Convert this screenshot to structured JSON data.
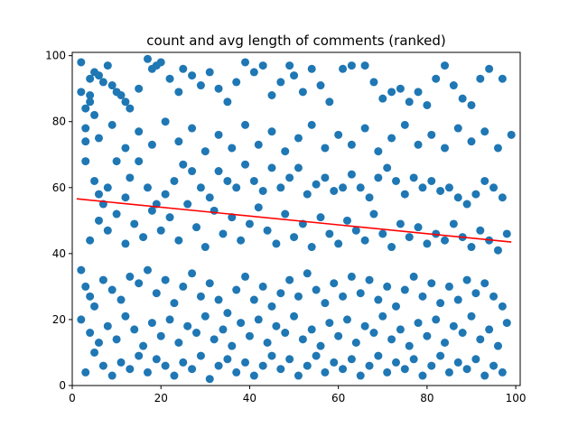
{
  "chart_data": {
    "type": "scatter",
    "title": "count and avg length of comments (ranked)",
    "xlabel": "",
    "ylabel": "",
    "xlim": [
      0,
      101
    ],
    "ylim": [
      0,
      101
    ],
    "xticks": [
      0,
      20,
      40,
      60,
      80,
      100
    ],
    "yticks": [
      0,
      20,
      40,
      60,
      80,
      100
    ],
    "grid": false,
    "legend": "none",
    "series": [
      {
        "kind": "points",
        "color": "#1f77b4",
        "points": [
          [
            2,
            98
          ],
          [
            2,
            89
          ],
          [
            3,
            84
          ],
          [
            3,
            74
          ],
          [
            4,
            93
          ],
          [
            4,
            88
          ],
          [
            4,
            86
          ],
          [
            5,
            95
          ],
          [
            5,
            82
          ],
          [
            6,
            94
          ],
          [
            7,
            92
          ],
          [
            8,
            97
          ],
          [
            9,
            91
          ],
          [
            10,
            89
          ],
          [
            11,
            88
          ],
          [
            12,
            86
          ],
          [
            13,
            84
          ],
          [
            15,
            90
          ],
          [
            17,
            99
          ],
          [
            18,
            96
          ],
          [
            19,
            97
          ],
          [
            20,
            98
          ],
          [
            22,
            93
          ],
          [
            24,
            89
          ],
          [
            25,
            96
          ],
          [
            27,
            94
          ],
          [
            29,
            91
          ],
          [
            31,
            95
          ],
          [
            33,
            90
          ],
          [
            35,
            86
          ],
          [
            37,
            92
          ],
          [
            39,
            98
          ],
          [
            41,
            95
          ],
          [
            43,
            97
          ],
          [
            45,
            88
          ],
          [
            47,
            92
          ],
          [
            49,
            97
          ],
          [
            50,
            94
          ],
          [
            52,
            89
          ],
          [
            54,
            96
          ],
          [
            56,
            91
          ],
          [
            58,
            86
          ],
          [
            61,
            96
          ],
          [
            63,
            97
          ],
          [
            66,
            97
          ],
          [
            68,
            92
          ],
          [
            70,
            87
          ],
          [
            72,
            89
          ],
          [
            74,
            90
          ],
          [
            76,
            86
          ],
          [
            78,
            89
          ],
          [
            80,
            85
          ],
          [
            82,
            93
          ],
          [
            84,
            97
          ],
          [
            86,
            91
          ],
          [
            88,
            87
          ],
          [
            90,
            85
          ],
          [
            92,
            93
          ],
          [
            94,
            96
          ],
          [
            97,
            93
          ],
          [
            3,
            68
          ],
          [
            5,
            62
          ],
          [
            6,
            58
          ],
          [
            7,
            55
          ],
          [
            8,
            60
          ],
          [
            10,
            68
          ],
          [
            12,
            57
          ],
          [
            13,
            63
          ],
          [
            15,
            68
          ],
          [
            17,
            60
          ],
          [
            19,
            55
          ],
          [
            21,
            58
          ],
          [
            23,
            62
          ],
          [
            25,
            67
          ],
          [
            27,
            65
          ],
          [
            29,
            60
          ],
          [
            31,
            57
          ],
          [
            33,
            65
          ],
          [
            35,
            62
          ],
          [
            37,
            60
          ],
          [
            39,
            67
          ],
          [
            41,
            62
          ],
          [
            43,
            59
          ],
          [
            45,
            66
          ],
          [
            47,
            60
          ],
          [
            49,
            63
          ],
          [
            51,
            66
          ],
          [
            53,
            58
          ],
          [
            55,
            61
          ],
          [
            57,
            63
          ],
          [
            59,
            59
          ],
          [
            61,
            60
          ],
          [
            63,
            64
          ],
          [
            65,
            60
          ],
          [
            67,
            57
          ],
          [
            69,
            63
          ],
          [
            71,
            66
          ],
          [
            73,
            62
          ],
          [
            75,
            58
          ],
          [
            77,
            63
          ],
          [
            79,
            60
          ],
          [
            81,
            62
          ],
          [
            83,
            59
          ],
          [
            85,
            60
          ],
          [
            87,
            57
          ],
          [
            89,
            55
          ],
          [
            91,
            58
          ],
          [
            93,
            62
          ],
          [
            95,
            60
          ],
          [
            97,
            57
          ],
          [
            2,
            35
          ],
          [
            3,
            30
          ],
          [
            4,
            27
          ],
          [
            5,
            24
          ],
          [
            7,
            32
          ],
          [
            9,
            29
          ],
          [
            11,
            26
          ],
          [
            13,
            33
          ],
          [
            15,
            31
          ],
          [
            17,
            35
          ],
          [
            19,
            28
          ],
          [
            21,
            32
          ],
          [
            23,
            25
          ],
          [
            25,
            30
          ],
          [
            27,
            34
          ],
          [
            29,
            27
          ],
          [
            31,
            31
          ],
          [
            33,
            26
          ],
          [
            35,
            22
          ],
          [
            37,
            29
          ],
          [
            39,
            33
          ],
          [
            41,
            26
          ],
          [
            43,
            30
          ],
          [
            45,
            24
          ],
          [
            47,
            28
          ],
          [
            49,
            32
          ],
          [
            51,
            27
          ],
          [
            53,
            34
          ],
          [
            55,
            29
          ],
          [
            57,
            25
          ],
          [
            59,
            31
          ],
          [
            61,
            27
          ],
          [
            63,
            33
          ],
          [
            65,
            28
          ],
          [
            67,
            32
          ],
          [
            69,
            26
          ],
          [
            71,
            30
          ],
          [
            73,
            24
          ],
          [
            75,
            29
          ],
          [
            77,
            33
          ],
          [
            79,
            27
          ],
          [
            81,
            31
          ],
          [
            83,
            25
          ],
          [
            85,
            30
          ],
          [
            87,
            26
          ],
          [
            89,
            32
          ],
          [
            91,
            28
          ],
          [
            93,
            31
          ],
          [
            95,
            27
          ],
          [
            97,
            24
          ],
          [
            3,
            4
          ],
          [
            5,
            10
          ],
          [
            7,
            6
          ],
          [
            9,
            3
          ],
          [
            11,
            7
          ],
          [
            13,
            5
          ],
          [
            15,
            9
          ],
          [
            17,
            4
          ],
          [
            19,
            8
          ],
          [
            21,
            6
          ],
          [
            23,
            3
          ],
          [
            25,
            7
          ],
          [
            27,
            5
          ],
          [
            29,
            9
          ],
          [
            31,
            2
          ],
          [
            33,
            6
          ],
          [
            35,
            8
          ],
          [
            37,
            4
          ],
          [
            39,
            7
          ],
          [
            41,
            3
          ],
          [
            43,
            6
          ],
          [
            45,
            9
          ],
          [
            47,
            5
          ],
          [
            49,
            8
          ],
          [
            51,
            3
          ],
          [
            53,
            6
          ],
          [
            55,
            9
          ],
          [
            57,
            4
          ],
          [
            59,
            7
          ],
          [
            61,
            5
          ],
          [
            63,
            8
          ],
          [
            65,
            3
          ],
          [
            67,
            6
          ],
          [
            69,
            9
          ],
          [
            71,
            4
          ],
          [
            73,
            7
          ],
          [
            75,
            5
          ],
          [
            77,
            8
          ],
          [
            79,
            3
          ],
          [
            81,
            6
          ],
          [
            83,
            9
          ],
          [
            85,
            4
          ],
          [
            87,
            7
          ],
          [
            89,
            5
          ],
          [
            91,
            8
          ],
          [
            93,
            3
          ],
          [
            95,
            6
          ],
          [
            97,
            4
          ],
          [
            4,
            44
          ],
          [
            6,
            50
          ],
          [
            8,
            47
          ],
          [
            10,
            52
          ],
          [
            12,
            43
          ],
          [
            14,
            49
          ],
          [
            16,
            45
          ],
          [
            18,
            53
          ],
          [
            20,
            47
          ],
          [
            22,
            51
          ],
          [
            24,
            44
          ],
          [
            26,
            55
          ],
          [
            28,
            48
          ],
          [
            30,
            42
          ],
          [
            32,
            53
          ],
          [
            34,
            46
          ],
          [
            36,
            51
          ],
          [
            38,
            44
          ],
          [
            40,
            49
          ],
          [
            42,
            54
          ],
          [
            44,
            47
          ],
          [
            46,
            43
          ],
          [
            48,
            52
          ],
          [
            50,
            45
          ],
          [
            52,
            49
          ],
          [
            54,
            42
          ],
          [
            56,
            51
          ],
          [
            58,
            46
          ],
          [
            60,
            43
          ],
          [
            62,
            50
          ],
          [
            64,
            47
          ],
          [
            66,
            44
          ],
          [
            68,
            52
          ],
          [
            70,
            46
          ],
          [
            72,
            42
          ],
          [
            74,
            49
          ],
          [
            76,
            45
          ],
          [
            78,
            48
          ],
          [
            80,
            43
          ],
          [
            82,
            46
          ],
          [
            84,
            44
          ],
          [
            86,
            49
          ],
          [
            88,
            45
          ],
          [
            90,
            42
          ],
          [
            92,
            47
          ],
          [
            94,
            44
          ],
          [
            96,
            41
          ],
          [
            98,
            46
          ],
          [
            2,
            20
          ],
          [
            4,
            16
          ],
          [
            6,
            13
          ],
          [
            8,
            18
          ],
          [
            10,
            14
          ],
          [
            12,
            21
          ],
          [
            14,
            17
          ],
          [
            16,
            12
          ],
          [
            18,
            19
          ],
          [
            20,
            15
          ],
          [
            22,
            20
          ],
          [
            24,
            13
          ],
          [
            26,
            18
          ],
          [
            28,
            16
          ],
          [
            30,
            21
          ],
          [
            32,
            14
          ],
          [
            34,
            17
          ],
          [
            36,
            12
          ],
          [
            38,
            19
          ],
          [
            40,
            15
          ],
          [
            42,
            20
          ],
          [
            44,
            13
          ],
          [
            46,
            18
          ],
          [
            48,
            16
          ],
          [
            50,
            21
          ],
          [
            52,
            14
          ],
          [
            54,
            17
          ],
          [
            56,
            12
          ],
          [
            58,
            19
          ],
          [
            60,
            15
          ],
          [
            62,
            20
          ],
          [
            64,
            13
          ],
          [
            66,
            18
          ],
          [
            68,
            16
          ],
          [
            70,
            21
          ],
          [
            72,
            14
          ],
          [
            74,
            17
          ],
          [
            76,
            12
          ],
          [
            78,
            19
          ],
          [
            80,
            15
          ],
          [
            82,
            20
          ],
          [
            84,
            13
          ],
          [
            86,
            18
          ],
          [
            88,
            16
          ],
          [
            90,
            21
          ],
          [
            92,
            14
          ],
          [
            94,
            17
          ],
          [
            96,
            12
          ],
          [
            98,
            19
          ],
          [
            3,
            78
          ],
          [
            6,
            75
          ],
          [
            9,
            79
          ],
          [
            12,
            72
          ],
          [
            15,
            77
          ],
          [
            18,
            73
          ],
          [
            21,
            80
          ],
          [
            24,
            74
          ],
          [
            27,
            78
          ],
          [
            30,
            71
          ],
          [
            33,
            76
          ],
          [
            36,
            72
          ],
          [
            39,
            79
          ],
          [
            42,
            73
          ],
          [
            45,
            77
          ],
          [
            48,
            71
          ],
          [
            51,
            75
          ],
          [
            54,
            79
          ],
          [
            57,
            72
          ],
          [
            60,
            76
          ],
          [
            63,
            73
          ],
          [
            66,
            78
          ],
          [
            69,
            71
          ],
          [
            72,
            75
          ],
          [
            75,
            79
          ],
          [
            78,
            73
          ],
          [
            81,
            76
          ],
          [
            84,
            72
          ],
          [
            87,
            78
          ],
          [
            90,
            74
          ],
          [
            93,
            77
          ],
          [
            96,
            72
          ],
          [
            99,
            76
          ]
        ]
      },
      {
        "kind": "line",
        "color": "#ff0000",
        "points": [
          [
            1,
            56.6
          ],
          [
            99,
            43.5
          ]
        ]
      }
    ]
  }
}
